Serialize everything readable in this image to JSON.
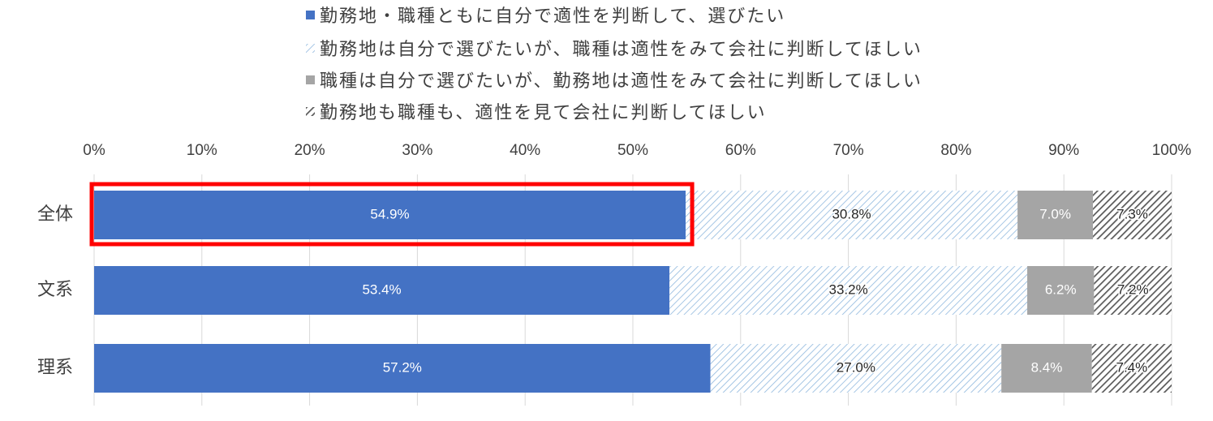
{
  "chart_data": {
    "type": "bar",
    "orientation": "horizontal",
    "stacked": "percent",
    "categories": [
      "全体",
      "文系",
      "理系"
    ],
    "xlim": [
      0,
      100
    ],
    "x_ticks": [
      "0%",
      "10%",
      "20%",
      "30%",
      "40%",
      "50%",
      "60%",
      "70%",
      "80%",
      "90%",
      "100%"
    ],
    "grid": "vertical",
    "legend_position": "top",
    "series": [
      {
        "name": "勤務地・職種ともに自分で適性を判断して、選びたい",
        "values": [
          54.9,
          53.4,
          57.2
        ],
        "labels": [
          "54.9%",
          "53.4%",
          "57.2%"
        ],
        "color": "#4472c4",
        "pattern": "solid",
        "label_color": "#ffffff"
      },
      {
        "name": "勤務地は自分で選びたいが、職種は適性をみて会社に判断してほしい",
        "values": [
          30.8,
          33.2,
          27.0
        ],
        "labels": [
          "30.8%",
          "33.2%",
          "27.0%"
        ],
        "color": "#9dc3e6",
        "pattern": "light-diagonal",
        "label_color": "#262626"
      },
      {
        "name": "職種は自分で選びたいが、勤務地は適性をみて会社に判断してほしい",
        "values": [
          7.0,
          6.2,
          8.4
        ],
        "labels": [
          "7.0%",
          "6.2%",
          "8.4%"
        ],
        "color": "#a5a5a5",
        "pattern": "solid",
        "label_color": "#ffffff"
      },
      {
        "name": "勤務地も職種も、適性を見て会社に判断してほしい",
        "values": [
          7.3,
          7.2,
          7.4
        ],
        "labels": [
          "7.3%",
          "7.2%",
          "7.4%"
        ],
        "color": "#595959",
        "pattern": "dark-diagonal",
        "label_color": "#262626"
      }
    ],
    "highlight": {
      "category": "全体",
      "series": "勤務地・職種ともに自分で適性を判断して、選びたい",
      "color": "#ff0000"
    }
  }
}
